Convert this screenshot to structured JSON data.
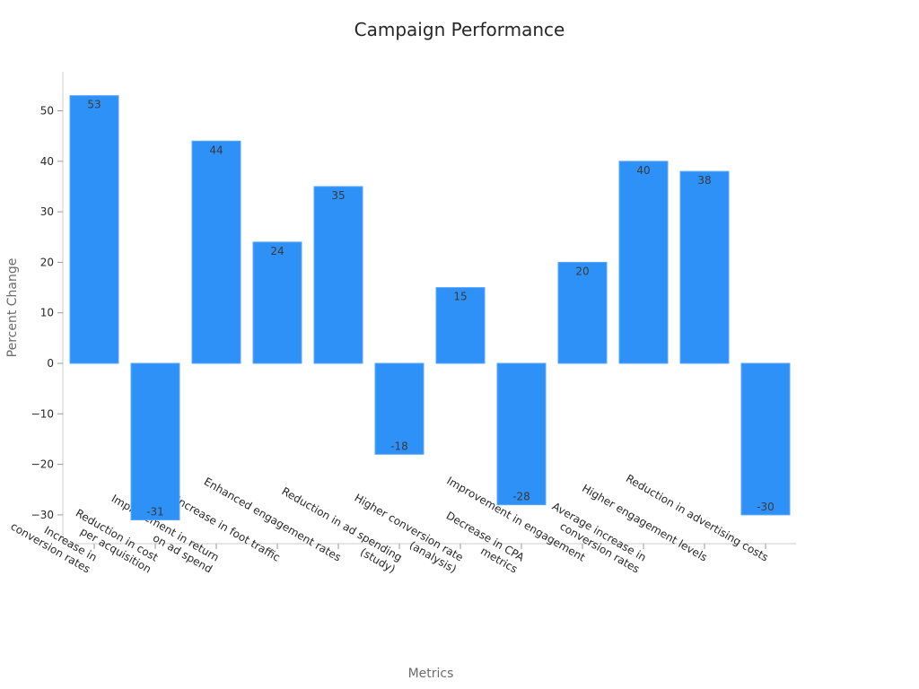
{
  "chart_data": {
    "type": "bar",
    "title": "Campaign Performance",
    "xlabel": "Metrics",
    "ylabel": "Percent Change",
    "categories": [
      [
        "Increase in",
        "conversion rates"
      ],
      [
        "Reduction in cost",
        "per acquisition"
      ],
      [
        "Improvement in return",
        "on ad spend"
      ],
      [
        "Increase in foot traffic"
      ],
      [
        "Enhanced engagement rates"
      ],
      [
        "Reduction in ad spending",
        "(study)"
      ],
      [
        "Higher conversion rate",
        "(analysis)"
      ],
      [
        "Decrease in CPA",
        "metrics"
      ],
      [
        "Improvement in engagement"
      ],
      [
        "Average increase in",
        "conversion rates"
      ],
      [
        "Higher engagement levels"
      ],
      [
        "Reduction in advertising costs"
      ]
    ],
    "values": [
      53,
      -31,
      44,
      24,
      35,
      -18,
      15,
      -28,
      20,
      40,
      38,
      -30
    ],
    "data_labels": [
      "53",
      "-31",
      "44",
      "24",
      "35",
      "-18",
      "15",
      "-28",
      "20",
      "40",
      "38",
      "-30"
    ],
    "ylim": [
      -35,
      57
    ],
    "yticks": [
      50,
      40,
      30,
      20,
      10,
      0,
      -10,
      -20,
      -30
    ],
    "ytick_labels": [
      "50",
      "40",
      "30",
      "20",
      "10",
      "0",
      "−10",
      "−20",
      "−30"
    ],
    "bar_color": "#2e91f8",
    "grid": false,
    "legend": "none"
  }
}
